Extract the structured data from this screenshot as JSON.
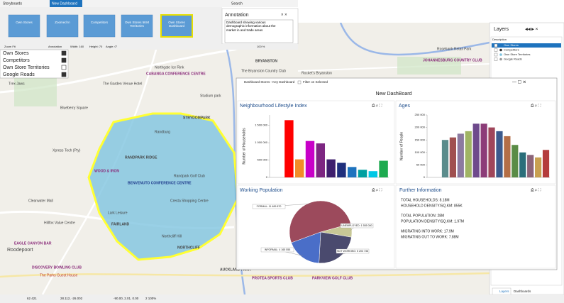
{
  "toolbar": {
    "app": "Storyboards",
    "tab": "New Dashboard",
    "search": "Search"
  },
  "storyboards": [
    "Own Stores",
    "Zoomed In",
    "Competitors",
    "Own Stores 5KM Territories",
    "Own Stores Dashboard"
  ],
  "annotation": {
    "title": "Annotation",
    "text": "Dashboard showing various demographic information about the market in and trade areas",
    "tools": [
      "Zoom Fit",
      "Annotation",
      "Width: 160",
      "Height: 70",
      "Angle: 0°",
      "100 %"
    ]
  },
  "map_layers": [
    "Own Stores",
    "Competitors",
    "Own Store Territories",
    "Google Roads"
  ],
  "map": {
    "labels": [
      "Trex Jaws",
      "The Garden Venue Hotel",
      "Blueberry Square",
      "Northgate Ice Rink",
      "CABANGA CONFERENCE CENTRE",
      "BRYANSTON",
      "The Bryanston Country Club",
      "Rocket's Bryanston",
      "Studium park",
      "STRYDOMPARK",
      "Randburg",
      "RANDPARK RIDGE",
      "WOOD & IRON",
      "BENVENUTO CONFERENCE CENTRE",
      "Randpark Golf Club",
      "Cresta Shopping Centre",
      "FAIRLAND",
      "Northcliff Hill",
      "NORTHCLIFF",
      "Clearwater Mall",
      "Hillfox Value Centre",
      "EAGLE CANYON BAR",
      "Roodepoort",
      "DISCOVERY BOWLING CLUB",
      "The Parks Guest House",
      "AUCKLAND PARK",
      "PROTEA SPORTS CLUB",
      "PARKVIEW GOLF CLUB",
      "JOHANNESBURG COUNTRY CLUB",
      "Rosebank Retail Park",
      "Xpress Tech (Pty)",
      "Lark Leisure"
    ]
  },
  "layers_panel": {
    "title": "Layers",
    "description": "Description",
    "items": [
      "Own Stores",
      "Competitors",
      "Own Store Territories",
      "Google Roads"
    ],
    "tabs": [
      "Layers",
      "Dashboards"
    ]
  },
  "dashboard": {
    "window_title": "Dashboard Stores - Key Dashboard",
    "filter": "Filter on Selected",
    "title": "New DashBoard",
    "info_title": "Further Information",
    "info": [
      "TOTAL HOUSEHOLDS: 8.18M",
      "HOUSEHOLD DENSITY/SQ.KM: 855K",
      "TOTAL POPULATION: 28M",
      "POPULATION DENSITY/SQ.KM: 1.97M",
      "MIGRATING INTO WORK: 17.9M",
      "MIGRATING OUT TO WORK: 7.88M"
    ]
  },
  "status_bar": [
    "62 421",
    "28.112, -26.002",
    "-90.00, 2.01, 0.00",
    "2 100%"
  ],
  "chart_data": [
    {
      "type": "bar",
      "title": "Neighbourhood Lifestyle Index",
      "ylabel": "Number of Households",
      "values": [
        1650000,
        520000,
        1050000,
        980000,
        520000,
        420000,
        300000,
        220000,
        180000,
        480000
      ],
      "colors": [
        "#ff0000",
        "#f28c28",
        "#c800c8",
        "#7d2682",
        "#3f1f6e",
        "#1f2f7d",
        "#1e73be",
        "#00a0a0",
        "#00c8e6",
        "#1eaa50"
      ],
      "ylim": [
        0,
        1800000
      ],
      "yticks": [
        0,
        {
          "value": 500000,
          "label": "500 000"
        },
        {
          "value": 1000000,
          "label": "1 000 000"
        },
        {
          "value": 1500000,
          "label": "1 500 000"
        }
      ]
    },
    {
      "type": "bar",
      "title": "Ages",
      "ylabel": "Number of People",
      "values": [
        150000,
        160000,
        175000,
        185000,
        215000,
        215000,
        200000,
        185000,
        165000,
        130000,
        100000,
        90000,
        80000,
        110000
      ],
      "colors": [
        "#5b8c8c",
        "#a05050",
        "#8c7aa0",
        "#a0b464",
        "#6e4a8c",
        "#8c3c78",
        "#a0465a",
        "#3c5a8c",
        "#b46e46",
        "#5a8c46",
        "#2a6e7a",
        "#8c6478",
        "#c8a050",
        "#b43c3c"
      ],
      "ylim": [
        0,
        250000
      ],
      "yticks": [
        0,
        {
          "value": 50000,
          "label": "50 000"
        },
        {
          "value": 100000,
          "label": "100 000"
        },
        {
          "value": 150000,
          "label": "150 000"
        },
        {
          "value": 200000,
          "label": "200 000"
        },
        {
          "value": 250000,
          "label": "250 000"
        }
      ]
    },
    {
      "type": "pie",
      "title": "Working Population",
      "values": [
        11489870,
        1555000,
        5203736,
        4165555
      ],
      "value_labels": [
        "FORMAL: 11 489 870",
        "UNEMPLOYED: 1 555 000",
        "NOT WORKING: 5 203 736",
        "INFORMAL: 4 165 555"
      ],
      "colors": [
        "#9c4a5c",
        "#c8c896",
        "#4a4a6e",
        "#4a6ec8"
      ]
    }
  ]
}
